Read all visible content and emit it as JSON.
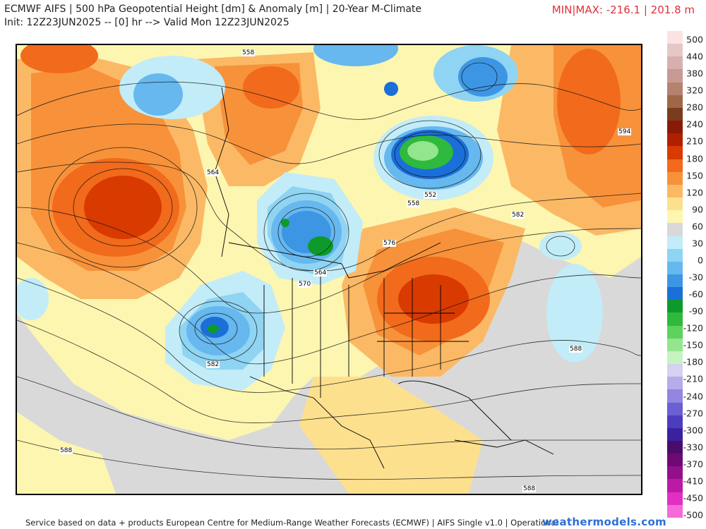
{
  "header": {
    "title_line1": "ECMWF AIFS | 500 hPa Geopotential Height [dm] & Anomaly [m] | 20-Year M-Climate",
    "title_line2": "Init: 12Z23JUN2025 -- [0] hr --> Valid Mon 12Z23JUN2025",
    "minmax": "MIN|MAX: -216.1 | 201.8 m"
  },
  "contour_labels": [
    "558",
    "594",
    "564",
    "552",
    "558",
    "582",
    "576",
    "564",
    "570",
    "582",
    "588",
    "588",
    "588"
  ],
  "colorbar": {
    "labels": [
      "500",
      "440",
      "380",
      "320",
      "280",
      "240",
      "210",
      "180",
      "150",
      "120",
      "90",
      "60",
      "30",
      "0",
      "-30",
      "-60",
      "-90",
      "-120",
      "-150",
      "-180",
      "-210",
      "-240",
      "-270",
      "-300",
      "-330",
      "-370",
      "-410",
      "-450",
      "-500"
    ],
    "colors": [
      "#fbe3e3",
      "#e6c7c7",
      "#d8afaf",
      "#c79a94",
      "#b4826f",
      "#9e6846",
      "#7a3b1e",
      "#8a1a08",
      "#b02000",
      "#d93a00",
      "#f26a1b",
      "#f7923a",
      "#fbb966",
      "#fde08e",
      "#fdf6b0",
      "#d9d9d9",
      "#c2ecf8",
      "#8fd4f2",
      "#66b8ee",
      "#3d96e4",
      "#1a6fd8",
      "#0e9a2a",
      "#2fb93d",
      "#5ed35b",
      "#93e68d",
      "#c6f3bf",
      "#d6d0f1",
      "#b6acea",
      "#9286e0",
      "#6c5fd2",
      "#4c3dc0",
      "#3a21a0",
      "#4a0c6a",
      "#6d0a73",
      "#92108c",
      "#bb1aa6",
      "#e22fc3",
      "#f56ad8"
    ]
  },
  "colors": {
    "minmax": "#e0303a",
    "site": "#2f6fd6"
  },
  "footer": {
    "text": "Service based on data + products European Centre for Medium-Range Weather Forecasts (ECMWF) | AIFS Single v1.0 | Operational",
    "site": "weathermodels.com"
  }
}
